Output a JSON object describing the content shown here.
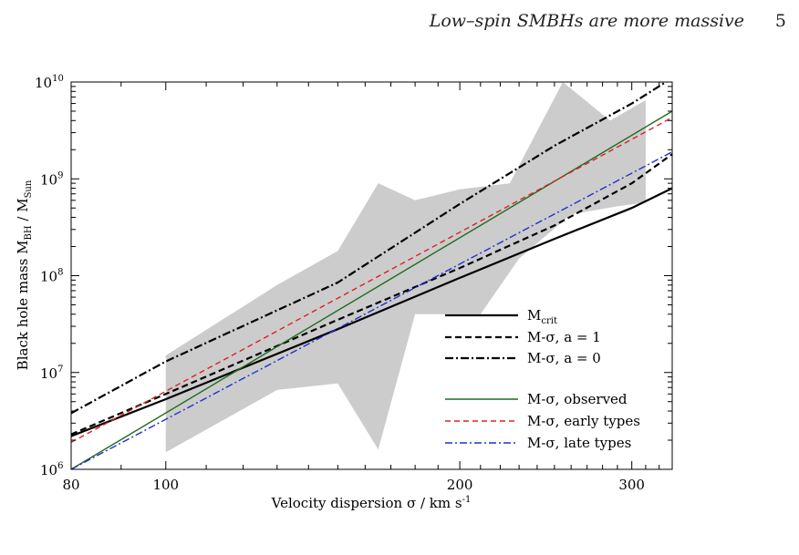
{
  "header": {
    "running_title": "Low–spin SMBHs are more massive",
    "page_number": "5"
  },
  "chart_data": {
    "type": "line",
    "xlabel": "Velocity dispersion σ / km s",
    "xlabel_sup": "-1",
    "ylabel": "Black hole mass M",
    "ylabel_sub1": "BH",
    "ylabel_mid": " / M",
    "ylabel_sub2": "Sun",
    "x_scale": "log",
    "y_scale": "log",
    "xlim": [
      80,
      330
    ],
    "ylim": [
      1000000,
      10000000000
    ],
    "x_ticks": [
      {
        "value": 80,
        "label": "80"
      },
      {
        "value": 100,
        "label": "100"
      },
      {
        "value": 200,
        "label": "200"
      },
      {
        "value": 300,
        "label": "300"
      }
    ],
    "y_ticks": [
      {
        "value": 1000000,
        "base": "10",
        "exp": "6"
      },
      {
        "value": 10000000,
        "base": "10",
        "exp": "7"
      },
      {
        "value": 100000000,
        "base": "10",
        "exp": "8"
      },
      {
        "value": 1000000000,
        "base": "10",
        "exp": "9"
      },
      {
        "value": 10000000000,
        "base": "10",
        "exp": "10"
      }
    ],
    "shaded_region": {
      "color": "#cccccc",
      "upper": [
        [
          100,
          15000000
        ],
        [
          130,
          80000000
        ],
        [
          150,
          180000000
        ],
        [
          165,
          900000000
        ],
        [
          180,
          600000000
        ],
        [
          200,
          780000000
        ],
        [
          225,
          900000000
        ],
        [
          255,
          10000000000
        ],
        [
          285,
          4000000000
        ],
        [
          310,
          6500000000
        ]
      ],
      "lower": [
        [
          310,
          570000000
        ],
        [
          290,
          520000000
        ],
        [
          260,
          430000000
        ],
        [
          230,
          150000000
        ],
        [
          210,
          40000000
        ],
        [
          180,
          40000000
        ],
        [
          165,
          1600000
        ],
        [
          150,
          7700000
        ],
        [
          130,
          6600000
        ],
        [
          100,
          1500000
        ]
      ]
    },
    "series": [
      {
        "name": "M",
        "name_sub": "crit",
        "color": "#000000",
        "dash": "",
        "width": 2.2,
        "points": [
          [
            80,
            2200000
          ],
          [
            100,
            5300000
          ],
          [
            150,
            28000000
          ],
          [
            200,
            95000000
          ],
          [
            250,
            240000000
          ],
          [
            300,
            500000000
          ],
          [
            330,
            800000000
          ]
        ]
      },
      {
        "name": "M-σ, a = 1",
        "color": "#000000",
        "dash": "7,4",
        "width": 2.2,
        "points": [
          [
            80,
            2300000
          ],
          [
            100,
            6000000
          ],
          [
            150,
            35000000
          ],
          [
            200,
            120000000
          ],
          [
            250,
            330000000
          ],
          [
            300,
            900000000
          ],
          [
            330,
            1800000000
          ]
        ]
      },
      {
        "name": "M-σ, a = 0",
        "color": "#000000",
        "dash": "9,3,2,3",
        "width": 2.2,
        "points": [
          [
            80,
            3800000
          ],
          [
            100,
            13000000
          ],
          [
            150,
            85000000
          ],
          [
            200,
            550000000
          ],
          [
            250,
            2200000000
          ],
          [
            300,
            6000000000
          ],
          [
            330,
            11000000000
          ]
        ]
      },
      {
        "name": "M-σ, observed",
        "color": "#1f6b1f",
        "dash": "",
        "width": 1.4,
        "points": [
          [
            80,
            1000000
          ],
          [
            330,
            5000000000
          ]
        ]
      },
      {
        "name": "M-σ, early types",
        "color": "#e02020",
        "dash": "6,4",
        "width": 1.4,
        "points": [
          [
            80,
            1900000
          ],
          [
            330,
            4300000000
          ]
        ]
      },
      {
        "name": "M-σ, late types",
        "color": "#2030d0",
        "dash": "8,3,2,3",
        "width": 1.4,
        "points": [
          [
            80,
            1000000
          ],
          [
            330,
            1900000000
          ]
        ]
      }
    ],
    "legend_placement": "lower-right"
  }
}
